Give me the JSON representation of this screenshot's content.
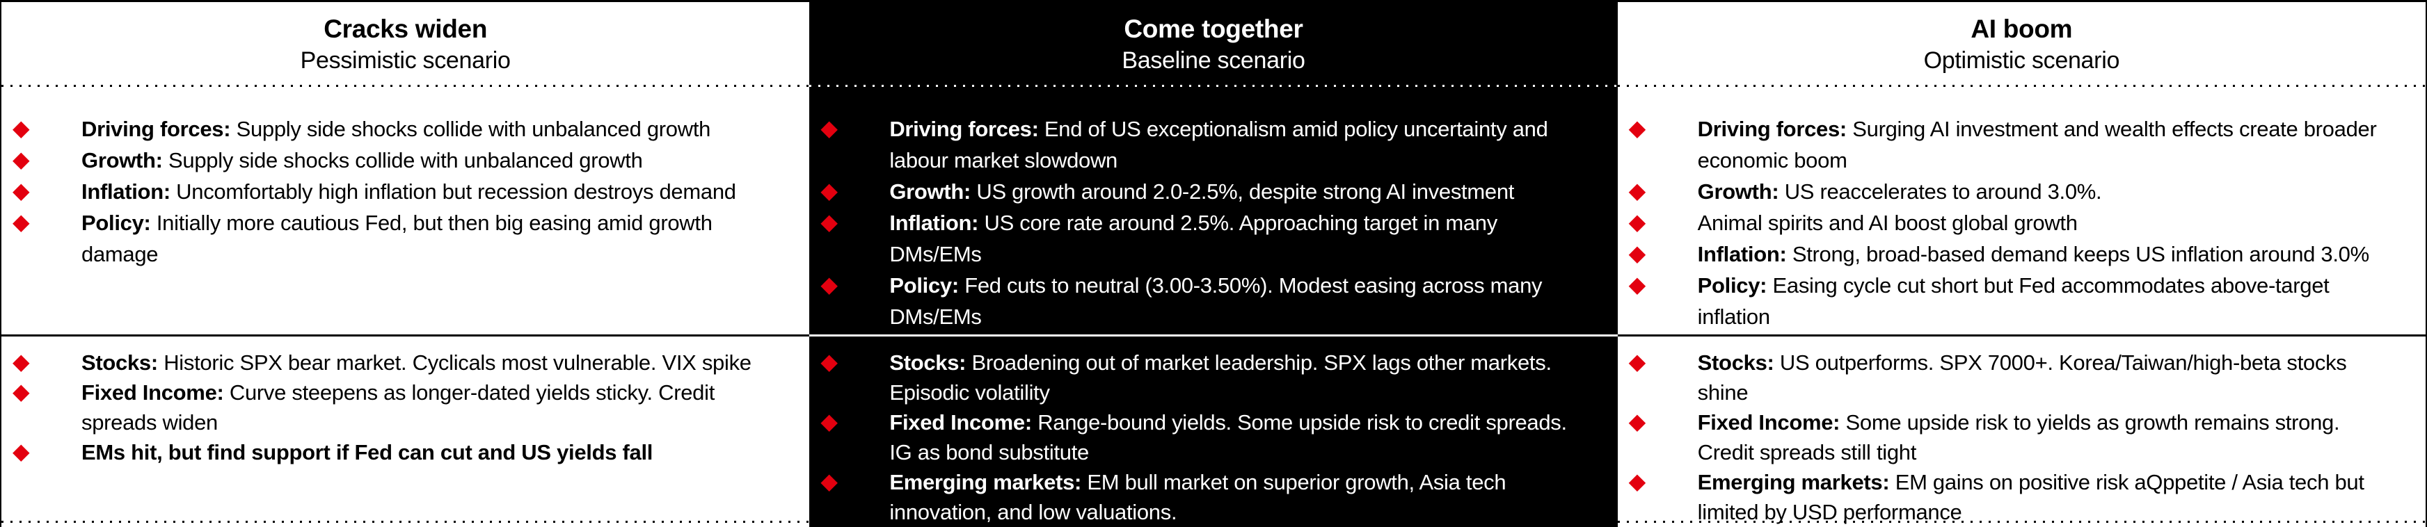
{
  "bullet_icon": "◆",
  "colors": {
    "accent_red": "#e3000f",
    "dark_column_bg": "#000000",
    "light_column_bg": "#ffffff"
  },
  "columns": [
    {
      "id": "pessimistic",
      "theme": "light",
      "title": "Cracks widen",
      "subtitle": "Pessimistic scenario",
      "sections": [
        {
          "name": "macro",
          "items": [
            {
              "label": "Driving forces:",
              "text": "Supply side shocks collide with unbalanced growth"
            },
            {
              "label": "Growth:",
              "text": "Supply side shocks collide with unbalanced growth"
            },
            {
              "label": "Inflation:",
              "text": "Uncomfortably high inflation but recession destroys demand"
            },
            {
              "label": "Policy:",
              "text": "Initially more cautious Fed, but then big easing amid growth damage"
            }
          ]
        },
        {
          "name": "markets",
          "items": [
            {
              "label": "Stocks:",
              "text": "Historic SPX bear market. Cyclicals most vulnerable. VIX spike"
            },
            {
              "label": "Fixed Income:",
              "text": "Curve steepens as longer-dated yields sticky. Credit spreads widen"
            },
            {
              "label": "EMs hit, but find support if Fed can cut and US yields fall",
              "text": ""
            }
          ]
        }
      ]
    },
    {
      "id": "baseline",
      "theme": "dark",
      "title": "Come together",
      "subtitle": "Baseline scenario",
      "sections": [
        {
          "name": "macro",
          "items": [
            {
              "label": "Driving forces:",
              "text": "End of US exceptionalism amid policy uncertainty and labour market slowdown"
            },
            {
              "label": "Growth:",
              "text": "US growth around 2.0-2.5%, despite strong AI investment"
            },
            {
              "label": "Inflation:",
              "text": "US core rate around 2.5%. Approaching target in many DMs/EMs"
            },
            {
              "label": "Policy:",
              "text": "Fed cuts to neutral (3.00-3.50%). Modest easing across many DMs/EMs"
            }
          ]
        },
        {
          "name": "markets",
          "items": [
            {
              "label": "Stocks:",
              "text": "Broadening out of market leadership. SPX lags other markets. Episodic volatility"
            },
            {
              "label": "Fixed Income:",
              "text": "Range-bound yields. Some upside risk to credit spreads. IG as bond substitute"
            },
            {
              "label": "Emerging markets:",
              "text": "EM bull market on superior growth, Asia tech innovation, and low valuations."
            }
          ]
        }
      ]
    },
    {
      "id": "optimistic",
      "theme": "light",
      "title": "AI boom",
      "subtitle": "Optimistic scenario",
      "sections": [
        {
          "name": "macro",
          "items": [
            {
              "label": "Driving forces:",
              "text": "Surging AI investment and wealth effects create broader economic boom"
            },
            {
              "label": "Growth:",
              "text": "US reaccelerates to around 3.0%."
            },
            {
              "label": "",
              "text": "Animal spirits and AI boost global growth"
            },
            {
              "label": "Inflation:",
              "text": "Strong, broad-based demand keeps US inflation around 3.0%"
            },
            {
              "label": "Policy:",
              "text": "Easing cycle cut short but Fed accommodates above-target inflation"
            }
          ]
        },
        {
          "name": "markets",
          "items": [
            {
              "label": "Stocks:",
              "text": "US outperforms. SPX 7000+. Korea/Taiwan/high-beta stocks shine"
            },
            {
              "label": "Fixed Income:",
              "text": "Some upside risk to yields as growth remains strong. Credit spreads still tight"
            },
            {
              "label": "Emerging markets:",
              "text": "EM gains on positive risk aQppetite / Asia tech but limited by USD performance"
            }
          ]
        }
      ]
    }
  ]
}
